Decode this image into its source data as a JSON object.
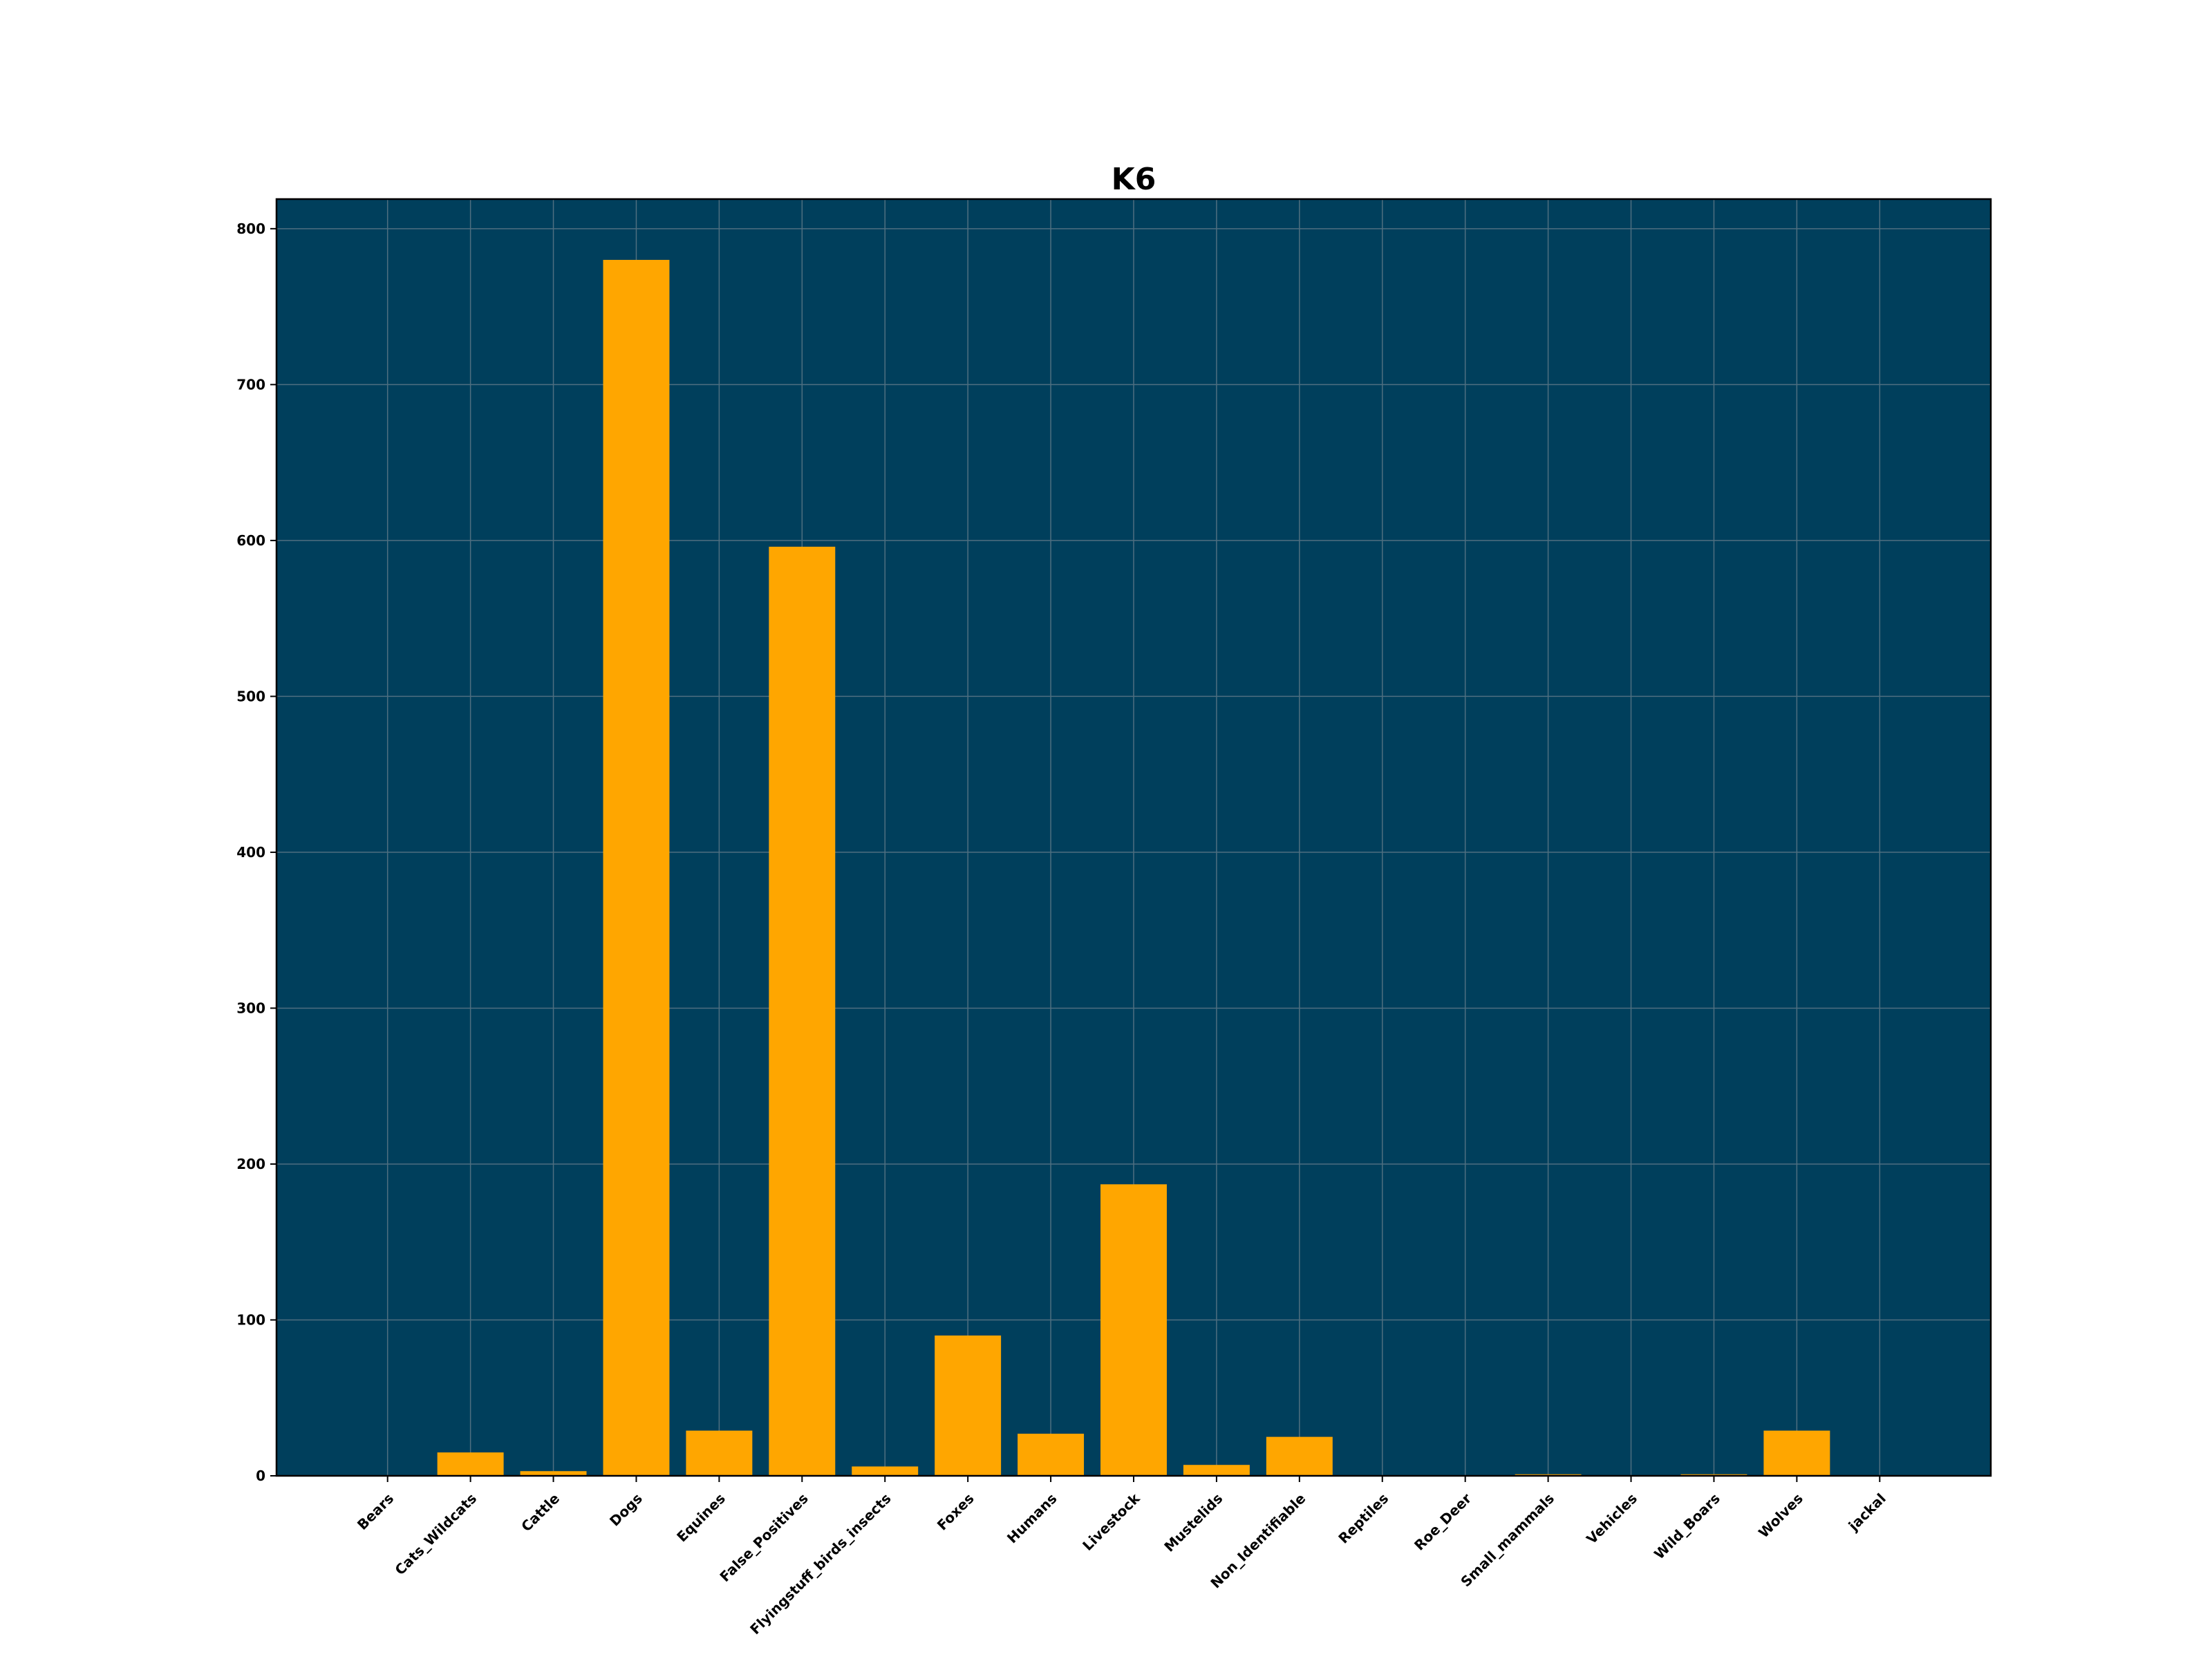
{
  "chart_data": {
    "type": "bar",
    "title": "K6",
    "xlabel": "",
    "ylabel": "",
    "categories": [
      "Bears",
      "Cats_Wildcats",
      "Cattle",
      "Dogs",
      "Equines",
      "False_Positives",
      "Flyingstuff_birds_insects",
      "Foxes",
      "Humans",
      "Livestock",
      "Mustelids",
      "Non_Identifiable",
      "Reptiles",
      "Roe_Deer",
      "Small_mammals",
      "Vehicles",
      "Wild_Boars",
      "Wolves",
      "jackal"
    ],
    "values": [
      0,
      15,
      3,
      780,
      29,
      596,
      6,
      90,
      27,
      187,
      7,
      25,
      0,
      0,
      1,
      0,
      1,
      29,
      0
    ],
    "ylim": [
      0,
      819
    ],
    "yticks": [
      0,
      100,
      200,
      300,
      400,
      500,
      600,
      700,
      800
    ],
    "grid": true,
    "legend": "none",
    "colors": {
      "bar": "#ffa600",
      "plot_background": "#003f5c",
      "grid": "#4f6f80"
    }
  }
}
